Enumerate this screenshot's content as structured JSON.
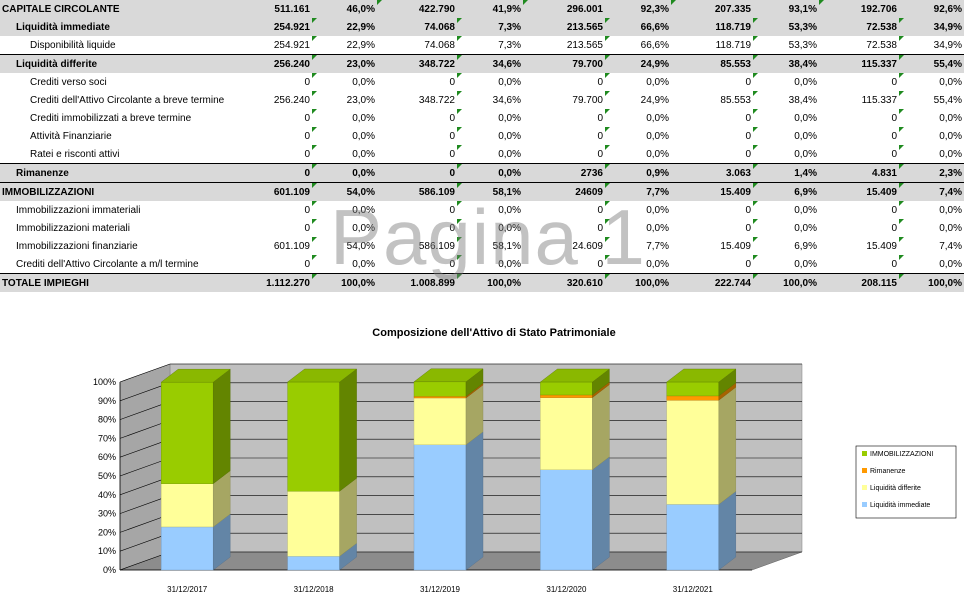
{
  "table": {
    "rows": [
      {
        "label": "CAPITALE CIRCOLANTE",
        "indent": 0,
        "style": "gray",
        "cells": [
          "511.161",
          "46,0%",
          "422.790",
          "41,9%",
          "296.001",
          "92,3%",
          "207.335",
          "93,1%",
          "192.706",
          "92,6%"
        ],
        "tri": [
          0,
          0
        ]
      },
      {
        "label": "Liquidità immediate",
        "indent": 14,
        "style": "gray",
        "cells": [
          "254.921",
          "22,9%",
          "74.068",
          "7,3%",
          "213.565",
          "66,6%",
          "118.719",
          "53,3%",
          "72.538",
          "34,9%"
        ],
        "tri": [
          0,
          1
        ]
      },
      {
        "label": "Disponibilità liquide",
        "indent": 28,
        "style": "bb",
        "cells": [
          "254.921",
          "22,9%",
          "74.068",
          "7,3%",
          "213.565",
          "66,6%",
          "118.719",
          "53,3%",
          "72.538",
          "34,9%"
        ],
        "tri": [
          0,
          1
        ]
      },
      {
        "label": "Liquidità differite",
        "indent": 14,
        "style": "gray",
        "cells": [
          "256.240",
          "23,0%",
          "348.722",
          "34,6%",
          "79.700",
          "24,9%",
          "85.553",
          "38,4%",
          "115.337",
          "55,4%"
        ],
        "tri": [
          0,
          1
        ]
      },
      {
        "label": "Crediti verso soci",
        "indent": 28,
        "style": "",
        "cells": [
          "0",
          "0,0%",
          "0",
          "0,0%",
          "0",
          "0,0%",
          "0",
          "0,0%",
          "0",
          "0,0%"
        ],
        "tri": [
          0,
          1
        ]
      },
      {
        "label": "Crediti dell'Attivo Circolante a breve termine",
        "indent": 28,
        "style": "",
        "cells": [
          "256.240",
          "23,0%",
          "348.722",
          "34,6%",
          "79.700",
          "24,9%",
          "85.553",
          "38,4%",
          "115.337",
          "55,4%"
        ],
        "tri": [
          0,
          1
        ]
      },
      {
        "label": "Crediti immobilizzati a breve termine",
        "indent": 28,
        "style": "",
        "cells": [
          "0",
          "0,0%",
          "0",
          "0,0%",
          "0",
          "0,0%",
          "0",
          "0,0%",
          "0",
          "0,0%"
        ],
        "tri": [
          0,
          1
        ]
      },
      {
        "label": "Attività Finanziarie",
        "indent": 28,
        "style": "",
        "cells": [
          "0",
          "0,0%",
          "0",
          "0,0%",
          "0",
          "0,0%",
          "0",
          "0,0%",
          "0",
          "0,0%"
        ],
        "tri": [
          0,
          1
        ]
      },
      {
        "label": "Ratei e risconti attivi",
        "indent": 28,
        "style": "bb",
        "cells": [
          "0",
          "0,0%",
          "0",
          "0,0%",
          "0",
          "0,0%",
          "0",
          "0,0%",
          "0",
          "0,0%"
        ],
        "tri": [
          0,
          1
        ]
      },
      {
        "label": "Rimanenze",
        "indent": 14,
        "style": "gray bb",
        "cells": [
          "0",
          "0,0%",
          "0",
          "0,0%",
          "2736",
          "0,9%",
          "3.063",
          "1,4%",
          "4.831",
          "2,3%"
        ],
        "tri": [
          0,
          1
        ]
      },
      {
        "label": "IMMOBILIZZAZIONI",
        "indent": 0,
        "style": "gray",
        "cells": [
          "601.109",
          "54,0%",
          "586.109",
          "58,1%",
          "24609",
          "7,7%",
          "15.409",
          "6,9%",
          "15.409",
          "7,4%"
        ],
        "tri": [
          0,
          1
        ]
      },
      {
        "label": "Immobilizzazioni immateriali",
        "indent": 14,
        "style": "",
        "cells": [
          "0",
          "0,0%",
          "0",
          "0,0%",
          "0",
          "0,0%",
          "0",
          "0,0%",
          "0",
          "0,0%"
        ],
        "tri": [
          1
        ]
      },
      {
        "label": "Immobilizzazioni materiali",
        "indent": 14,
        "style": "",
        "cells": [
          "0",
          "0,0%",
          "0",
          "0,0%",
          "0",
          "0,0%",
          "0",
          "0,0%",
          "0",
          "0,0%"
        ],
        "tri": [
          1
        ]
      },
      {
        "label": "Immobilizzazioni finanziarie",
        "indent": 14,
        "style": "",
        "cells": [
          "601.109",
          "54,0%",
          "586.109",
          "58,1%",
          "24.609",
          "7,7%",
          "15.409",
          "6,9%",
          "15.409",
          "7,4%"
        ],
        "tri": [
          1
        ]
      },
      {
        "label": "Crediti dell'Attivo Circolante a m/l termine",
        "indent": 14,
        "style": "bb",
        "cells": [
          "0",
          "0,0%",
          "0",
          "0,0%",
          "0",
          "0,0%",
          "0",
          "0,0%",
          "0",
          "0,0%"
        ],
        "tri": [
          1
        ]
      },
      {
        "label": "TOTALE IMPIEGHI",
        "indent": 0,
        "style": "gray total",
        "cells": [
          "1.112.270",
          "100,0%",
          "1.008.899",
          "100,0%",
          "320.610",
          "100,0%",
          "222.744",
          "100,0%",
          "208.115",
          "100,0%"
        ],
        "tri": [
          0,
          1
        ]
      }
    ]
  },
  "watermark": "Pagina 1",
  "chart_data": {
    "type": "bar",
    "stacked": true,
    "three_d": true,
    "title": "Composizione dell'Attivo di Stato Patrimoniale",
    "categories": [
      "31/12/2017",
      "31/12/2018",
      "31/12/2019",
      "31/12/2020",
      "31/12/2021"
    ],
    "series": [
      {
        "name": "Liquidità immediate",
        "values": [
          22.9,
          7.3,
          66.6,
          53.3,
          34.9
        ],
        "color": "#99ccff"
      },
      {
        "name": "Liquidità differite",
        "values": [
          23.0,
          34.6,
          24.9,
          38.4,
          55.4
        ],
        "color": "#ffff99"
      },
      {
        "name": "Rimanenze",
        "values": [
          0.0,
          0.0,
          0.9,
          1.4,
          2.3
        ],
        "color": "#ff9900"
      },
      {
        "name": "IMMOBILIZZAZIONI",
        "values": [
          54.0,
          58.1,
          7.7,
          6.9,
          7.4
        ],
        "color": "#99cc00"
      }
    ],
    "y_ticks": [
      "0%",
      "10%",
      "20%",
      "30%",
      "40%",
      "50%",
      "60%",
      "70%",
      "80%",
      "90%",
      "100%"
    ],
    "ylim": [
      0,
      100
    ],
    "legend_position": "right",
    "legend_order": [
      "IMMOBILIZZAZIONI",
      "Rimanenze",
      "Liquidità differite",
      "Liquidità immediate"
    ]
  }
}
